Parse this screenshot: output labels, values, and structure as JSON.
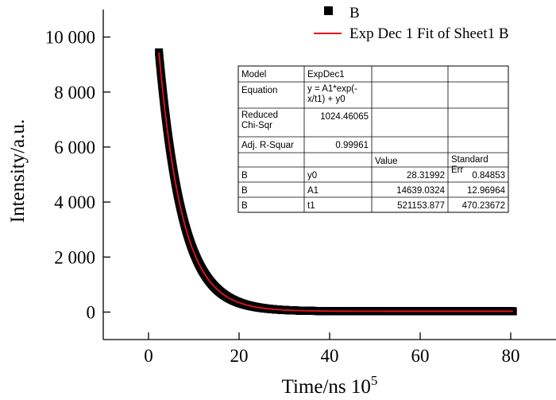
{
  "chart_data": {
    "type": "scatter",
    "xlabel": "Time/ns 10",
    "xlabel_exponent": "5",
    "ylabel": "Intensity/a.u.",
    "xlim": [
      -10,
      90
    ],
    "ylim": [
      -1000,
      11000
    ],
    "x_ticks": [
      0,
      20,
      40,
      60,
      80
    ],
    "y_ticks": [
      0,
      2000,
      4000,
      6000,
      8000,
      10000
    ],
    "x_tick_labels": [
      "0",
      "20",
      "40",
      "60",
      "80"
    ],
    "y_tick_labels": [
      "0",
      "2 000",
      "4 000",
      "6 000",
      "8 000",
      "10 000"
    ],
    "grid": false,
    "legend_position": "top-right",
    "series": [
      {
        "name": "B",
        "kind": "scatter",
        "color": "#000000",
        "x_start": 2.3,
        "x_end": 80.5,
        "x": [
          2.3,
          3,
          4,
          5,
          6,
          8,
          10,
          12,
          15,
          20,
          25,
          30,
          40,
          50,
          60,
          70,
          80.5
        ],
        "y": [
          9400,
          8600,
          7700,
          6600,
          5700,
          4300,
          3200,
          2400,
          1600,
          690,
          320,
          150,
          60,
          40,
          35,
          30,
          28
        ]
      },
      {
        "name": "Exp Dec 1 Fit of Sheet1 B",
        "kind": "line",
        "color": "#e8121c",
        "model": "y0 + A1*exp(-x/t1)",
        "y0": 28.31992,
        "A1": 14639.0324,
        "t1_in_x_units": 5.21153877
      }
    ]
  },
  "fit_table": {
    "rows": [
      {
        "c1": "Model",
        "c2": "ExpDec1",
        "c3": "",
        "c4": ""
      },
      {
        "c1": "Equation",
        "c2": "y = A1*exp(-x/t1) + y0",
        "c3": "",
        "c4": ""
      },
      {
        "c1": "Reduced Chi-Sqr",
        "c2": "1024.46065",
        "c3": "",
        "c4": ""
      },
      {
        "c1": "Adj. R-Squar",
        "c2": "0.99961",
        "c3": "",
        "c4": ""
      },
      {
        "c1": "",
        "c2": "",
        "c3": "Value",
        "c4": "Standard Err"
      },
      {
        "c1": "B",
        "c2": "y0",
        "c3": "28.31992",
        "c4": "0.84853"
      },
      {
        "c1": "B",
        "c2": "A1",
        "c3": "14639.0324",
        "c4": "12.96964"
      },
      {
        "c1": "B",
        "c2": "t1",
        "c3": "521153.877",
        "c4": "470.23672"
      }
    ]
  }
}
